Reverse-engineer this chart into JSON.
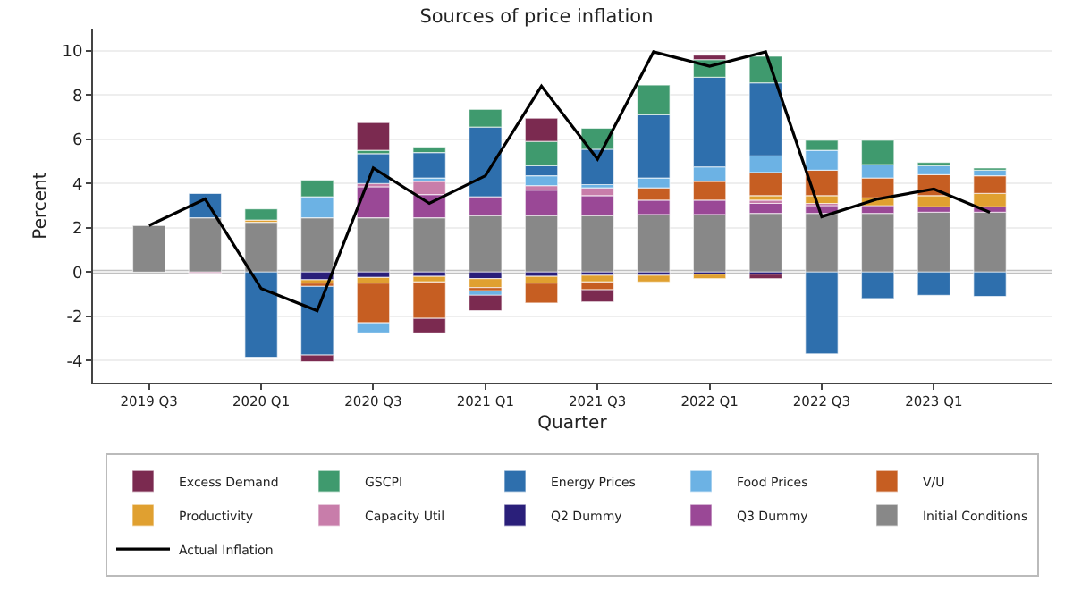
{
  "chart_data": {
    "type": "bar",
    "title": "Sources of price inflation",
    "xlabel": "Quarter",
    "ylabel": "Percent",
    "categories": [
      "2019 Q3",
      null,
      "2020 Q1",
      null,
      "2020 Q3",
      null,
      "2021 Q1",
      null,
      "2021 Q3",
      null,
      "2022 Q1",
      null,
      "2022 Q3",
      null,
      "2023 Q1",
      null
    ],
    "stacked": true,
    "ylim": [
      -5,
      11
    ],
    "yticks": [
      -4,
      -2,
      0,
      2,
      4,
      6,
      8,
      10
    ],
    "grid": "y",
    "legend": "bottom",
    "ref_lines": [
      {
        "axis": "y",
        "value": 0,
        "color": "#c0c0c0"
      }
    ],
    "series": [
      {
        "name": "Initial Conditions",
        "color": "#888888",
        "values": [
          2.1,
          2.45,
          2.25,
          2.45,
          2.45,
          2.45,
          2.55,
          2.55,
          2.55,
          2.6,
          2.6,
          2.65,
          2.65,
          2.65,
          2.7,
          2.7
        ]
      },
      {
        "name": "Q3 Dummy",
        "color": "#9a4896",
        "values": [
          null,
          null,
          null,
          null,
          1.4,
          1.05,
          0.85,
          1.15,
          0.9,
          0.65,
          0.65,
          0.45,
          0.35,
          0.35,
          0.25,
          0.25
        ]
      },
      {
        "name": "Q2 Dummy",
        "color": "#2a1f7a",
        "values": [
          null,
          null,
          null,
          -0.35,
          -0.25,
          -0.2,
          -0.3,
          -0.2,
          -0.15,
          -0.15,
          -0.1,
          -0.1,
          null,
          null,
          null,
          null
        ]
      },
      {
        "name": "Capacity Util",
        "color": "#c87daa",
        "values": [
          null,
          -0.05,
          null,
          null,
          0.15,
          0.6,
          null,
          0.2,
          0.35,
          null,
          null,
          0.15,
          0.1,
          null,
          null,
          null
        ]
      },
      {
        "name": "Productivity",
        "color": "#e0a030",
        "values": [
          null,
          null,
          0.1,
          -0.15,
          -0.25,
          -0.25,
          -0.4,
          -0.3,
          -0.3,
          -0.3,
          -0.2,
          0.2,
          0.35,
          0.35,
          0.5,
          0.6
        ]
      },
      {
        "name": "V/U",
        "color": "#c65e22",
        "values": [
          null,
          null,
          null,
          -0.15,
          -1.8,
          -1.65,
          -0.15,
          -0.9,
          -0.35,
          0.55,
          0.85,
          1.05,
          1.15,
          0.9,
          0.95,
          0.8
        ]
      },
      {
        "name": "Food Prices",
        "color": "#6cb2e4",
        "values": [
          null,
          null,
          null,
          0.95,
          -0.45,
          0.15,
          -0.2,
          0.45,
          0.15,
          0.45,
          0.65,
          0.75,
          0.9,
          0.6,
          0.4,
          0.25
        ]
      },
      {
        "name": "Energy Prices",
        "color": "#2e6fad",
        "values": [
          null,
          1.1,
          -3.85,
          -3.1,
          1.35,
          1.15,
          3.15,
          0.45,
          1.6,
          2.85,
          4.05,
          3.3,
          -3.7,
          -1.2,
          -1.05,
          -1.1
        ]
      },
      {
        "name": "GSCPI",
        "color": "#3f9a6e",
        "values": [
          null,
          null,
          0.5,
          0.75,
          0.15,
          0.25,
          0.8,
          1.1,
          0.95,
          1.35,
          0.8,
          1.2,
          0.45,
          1.1,
          0.15,
          0.1
        ]
      },
      {
        "name": "Excess Demand",
        "color": "#7b2a50",
        "values": [
          null,
          null,
          null,
          -0.3,
          1.25,
          -0.65,
          -0.7,
          1.05,
          -0.55,
          null,
          0.2,
          -0.2,
          null,
          null,
          null,
          null
        ]
      },
      {
        "name": "Actual Inflation",
        "type": "line",
        "color": "#000000",
        "marker": "none",
        "line_style": "solid",
        "values": [
          2.1,
          3.3,
          -0.75,
          -1.75,
          4.7,
          3.1,
          4.35,
          8.4,
          5.1,
          9.95,
          9.3,
          9.95,
          2.5,
          3.3,
          3.75,
          2.7
        ]
      }
    ]
  }
}
